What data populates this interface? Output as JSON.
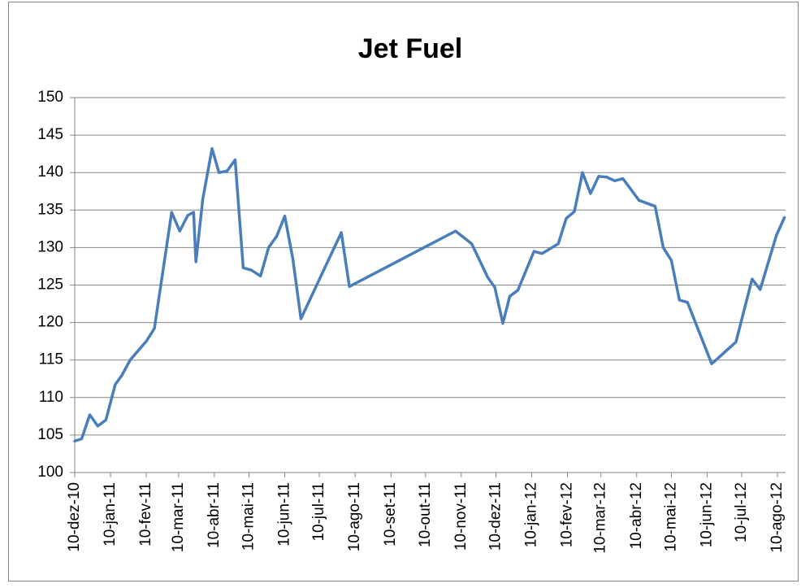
{
  "chart_data": {
    "type": "line",
    "title": "Jet Fuel",
    "x": [
      "2010-12-10",
      "2010-12-16",
      "2010-12-23",
      "2010-12-30",
      "2011-01-06",
      "2011-01-14",
      "2011-01-20",
      "2011-01-27",
      "2011-02-10",
      "2011-02-17",
      "2011-03-04",
      "2011-03-11",
      "2011-03-18",
      "2011-03-23",
      "2011-03-25",
      "2011-03-31",
      "2011-04-08",
      "2011-04-14",
      "2011-04-21",
      "2011-04-28",
      "2011-05-05",
      "2011-05-12",
      "2011-05-20",
      "2011-05-27",
      "2011-06-03",
      "2011-06-10",
      "2011-06-17",
      "2011-06-24",
      "2011-07-29",
      "2011-08-05",
      "2011-11-05",
      "2011-11-19",
      "2011-12-03",
      "2011-12-09",
      "2011-12-16",
      "2011-12-22",
      "2011-12-29",
      "2012-01-12",
      "2012-01-19",
      "2012-02-02",
      "2012-02-09",
      "2012-02-16",
      "2012-02-23",
      "2012-03-01",
      "2012-03-08",
      "2012-03-15",
      "2012-03-22",
      "2012-03-29",
      "2012-04-12",
      "2012-04-26",
      "2012-05-03",
      "2012-05-10",
      "2012-05-17",
      "2012-05-24",
      "2012-06-14",
      "2012-07-05",
      "2012-07-19",
      "2012-07-26",
      "2012-08-09",
      "2012-08-16"
    ],
    "series": [
      {
        "name": "Jet Fuel",
        "color": "#4a7ebb",
        "values": [
          104.2,
          104.5,
          107.7,
          106.2,
          107.0,
          111.7,
          113.0,
          115.0,
          117.5,
          119.2,
          134.7,
          132.2,
          134.3,
          134.7,
          128.1,
          136.5,
          143.2,
          140.0,
          140.2,
          141.7,
          127.3,
          127.0,
          126.2,
          130.0,
          131.5,
          134.2,
          128.5,
          120.5,
          132.0,
          124.8,
          132.2,
          130.5,
          126.0,
          124.7,
          119.9,
          123.5,
          124.3,
          129.5,
          129.2,
          130.5,
          133.9,
          134.8,
          140.0,
          137.2,
          139.5,
          139.4,
          138.9,
          139.2,
          136.3,
          135.5,
          130.0,
          128.3,
          123.0,
          122.7,
          114.5,
          117.4,
          125.8,
          124.4,
          131.6,
          134.0
        ]
      }
    ],
    "xlim": [
      "2010-12-10",
      "2012-08-17"
    ],
    "xticks": [
      {
        "value": "2010-12-10",
        "label": "10-dez-10"
      },
      {
        "value": "2011-01-10",
        "label": "10-jan-11"
      },
      {
        "value": "2011-02-10",
        "label": "10-fev-11"
      },
      {
        "value": "2011-03-10",
        "label": "10-mar-11"
      },
      {
        "value": "2011-04-10",
        "label": "10-abr-11"
      },
      {
        "value": "2011-05-10",
        "label": "10-mai-11"
      },
      {
        "value": "2011-06-10",
        "label": "10-jun-11"
      },
      {
        "value": "2011-07-10",
        "label": "10-jul-11"
      },
      {
        "value": "2011-08-10",
        "label": "10-ago-11"
      },
      {
        "value": "2011-09-10",
        "label": "10-set-11"
      },
      {
        "value": "2011-10-10",
        "label": "10-out-11"
      },
      {
        "value": "2011-11-10",
        "label": "10-nov-11"
      },
      {
        "value": "2011-12-10",
        "label": "10-dez-11"
      },
      {
        "value": "2012-01-10",
        "label": "10-jan-12"
      },
      {
        "value": "2012-02-10",
        "label": "10-fev-12"
      },
      {
        "value": "2012-03-10",
        "label": "10-mar-12"
      },
      {
        "value": "2012-04-10",
        "label": "10-abr-12"
      },
      {
        "value": "2012-05-10",
        "label": "10-mai-12"
      },
      {
        "value": "2012-06-10",
        "label": "10-jun-12"
      },
      {
        "value": "2012-07-10",
        "label": "10-jul-12"
      },
      {
        "value": "2012-08-10",
        "label": "10-ago-12"
      }
    ],
    "ylim": [
      100,
      150
    ],
    "yticks": [
      100,
      105,
      110,
      115,
      120,
      125,
      130,
      135,
      140,
      145,
      150
    ],
    "grid": true
  }
}
